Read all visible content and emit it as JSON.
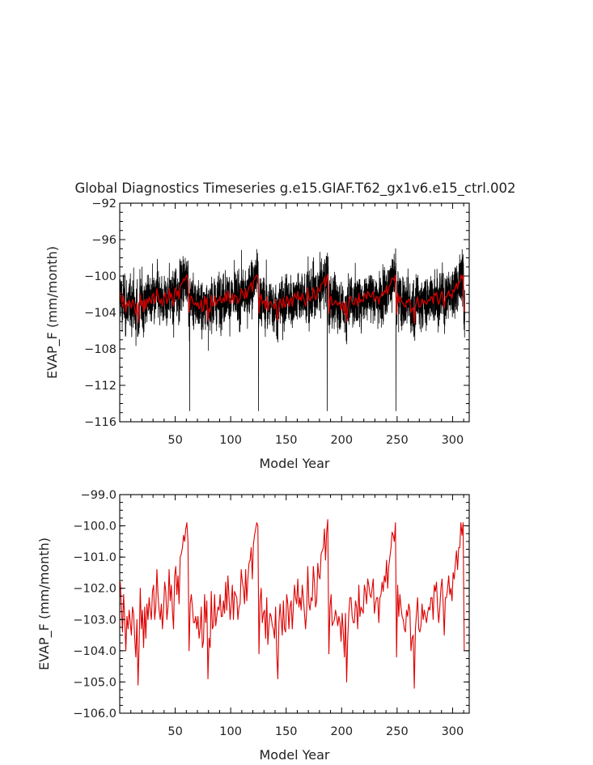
{
  "chart_data": [
    {
      "type": "line",
      "title": "Global Diagnostics Timeseries g.e15.GIAF.T62_gx1v6.e15_ctrl.002",
      "xlabel": "Model Year",
      "ylabel": "EVAP_F (mm/month)",
      "xlim": [
        0,
        315
      ],
      "ylim": [
        -116,
        -92
      ],
      "x_ticks": [
        50,
        100,
        150,
        200,
        250,
        300
      ],
      "x_tick_labels": [
        "50",
        "100",
        "150",
        "200",
        "250",
        "300"
      ],
      "y_ticks": [
        -116,
        -112,
        -108,
        -104,
        -100,
        -96,
        -92
      ],
      "y_tick_labels": [
        "−116",
        "−112",
        "−108",
        "−104",
        "−100",
        "−96",
        "−92"
      ],
      "grid": false,
      "series": [
        {
          "color": "#000000",
          "description_visible": "monthly values",
          "annual_base_mm_per_month": [
            -101.8,
            -102.6,
            -103.4,
            -102.2,
            -103.0,
            -104.0,
            -102.9,
            -103.3,
            -102.7,
            -103.1,
            -103.5,
            -102.6,
            -102.8,
            -103.6,
            -104.2,
            -103.0,
            -105.1,
            -103.8,
            -102.0,
            -103.3,
            -102.7,
            -103.9,
            -102.6,
            -103.6,
            -102.5,
            -103.0,
            -102.3,
            -102.7,
            -103.0,
            -102.1,
            -101.9,
            -103.0,
            -102.6,
            -101.4,
            -102.2,
            -102.7,
            -103.0,
            -102.5,
            -103.3,
            -102.7,
            -101.8,
            -102.1,
            -103.0,
            -102.6,
            -101.4,
            -102.4,
            -101.9,
            -102.7,
            -103.3,
            -101.6,
            -101.3,
            -102.2,
            -101.6,
            -102.5,
            -101.0,
            -100.9,
            -100.7,
            -100.3,
            -100.5,
            -100.1,
            -99.9,
            -100.5,
            -104.0,
            -102.5,
            -102.2,
            -102.6,
            -103.1,
            -103.1,
            -102.9,
            -103.3,
            -102.9,
            -103.6,
            -103.3,
            -102.6,
            -103.9,
            -103.7,
            -102.2,
            -103.1,
            -102.4,
            -104.9,
            -103.6,
            -103.9,
            -102.1,
            -103.3,
            -103.2,
            -102.2,
            -103.2,
            -102.9,
            -102.6,
            -102.7,
            -102.2,
            -102.9,
            -102.9,
            -102.4,
            -102.8,
            -101.8,
            -102.7,
            -101.6,
            -102.3,
            -103.0,
            -102.5,
            -101.9,
            -103.0,
            -102.1,
            -102.2,
            -102.3,
            -103.0,
            -102.6,
            -102.5,
            -101.4,
            -101.8,
            -102.0,
            -102.5,
            -101.4,
            -102.4,
            -101.7,
            -101.2,
            -101.1,
            -100.7,
            -101.7,
            -100.6,
            -100.3,
            -100.1,
            -99.9,
            -100.0,
            -104.1,
            -102.4,
            -102.0,
            -103.1,
            -102.8,
            -102.7,
            -103.6,
            -102.3,
            -103.8,
            -103.2,
            -102.8,
            -102.9,
            -103.2,
            -103.3,
            -103.6,
            -102.6,
            -104.1,
            -104.9,
            -103.1,
            -102.5,
            -103.0,
            -103.5,
            -102.4,
            -103.3,
            -103.4,
            -102.2,
            -102.5,
            -103.3,
            -102.6,
            -102.4,
            -103.3,
            -102.6,
            -101.9,
            -102.3,
            -102.5,
            -101.7,
            -102.6,
            -102.3,
            -102.7,
            -101.9,
            -102.3,
            -102.8,
            -103.3,
            -102.7,
            -101.3,
            -102.5,
            -102.7,
            -102.3,
            -102.4,
            -101.3,
            -101.8,
            -102.6,
            -102.4,
            -101.2,
            -101.6,
            -101.7,
            -100.9,
            -100.8,
            -100.7,
            -100.1,
            -101.1,
            -100.2,
            -99.8,
            -104.1,
            -102.6,
            -102.2,
            -103.2,
            -103.1,
            -103.0,
            -102.7,
            -102.9,
            -103.2,
            -102.9,
            -103.1,
            -103.7,
            -102.8,
            -103.4,
            -104.2,
            -102.8,
            -105.0,
            -103.6,
            -102.8,
            -102.3,
            -102.3,
            -102.9,
            -103.1,
            -103.1,
            -102.4,
            -102.6,
            -103.3,
            -101.9,
            -102.9,
            -102.6,
            -102.7,
            -102.8,
            -101.9,
            -102.1,
            -102.5,
            -101.7,
            -101.9,
            -102.2,
            -102.3,
            -102.0,
            -101.7,
            -102.8,
            -102.5,
            -102.3,
            -102.3,
            -103.1,
            -102.3,
            -102.2,
            -101.8,
            -102.1,
            -101.6,
            -101.8,
            -101.1,
            -102.0,
            -101.3,
            -101.0,
            -100.7,
            -100.2,
            -100.3,
            -100.5,
            -99.9,
            -104.2,
            -101.9,
            -102.9,
            -102.2,
            -102.6,
            -102.9,
            -103.0,
            -103.3,
            -103.4,
            -102.7,
            -102.9,
            -102.5,
            -102.7,
            -104.0,
            -103.6,
            -103.5,
            -105.2,
            -103.3,
            -102.8,
            -102.3,
            -103.3,
            -103.4,
            -103.2,
            -102.5,
            -103.0,
            -102.7,
            -102.9,
            -103.1,
            -102.8,
            -102.6,
            -102.7,
            -102.3,
            -102.3,
            -103.0,
            -101.9,
            -102.1,
            -101.8,
            -102.6,
            -103.1,
            -102.6,
            -102.0,
            -101.7,
            -102.5,
            -103.5,
            -102.3,
            -102.3,
            -102.0,
            -101.6,
            -102.2,
            -102.0,
            -102.4,
            -101.5,
            -101.7,
            -101.2,
            -100.8,
            -101.4,
            -100.7,
            -100.7,
            -99.9,
            -100.3,
            -99.9,
            -104.0
          ],
          "outliers": [
            [
              63,
              -114.8
            ],
            [
              125,
              -114.8
            ],
            [
              187,
              -114.8
            ],
            [
              249,
              -114.8
            ]
          ]
        },
        {
          "color": "#cc0000",
          "description_visible": "annual mean",
          "values_ref": "annual_means"
        }
      ]
    },
    {
      "type": "line",
      "title": "",
      "xlabel": "Model Year",
      "ylabel": "EVAP_F (mm/month)",
      "xlim": [
        0,
        315
      ],
      "ylim": [
        -106,
        -99
      ],
      "x_ticks": [
        50,
        100,
        150,
        200,
        250,
        300
      ],
      "x_tick_labels": [
        "50",
        "100",
        "150",
        "200",
        "250",
        "300"
      ],
      "y_ticks": [
        -106,
        -105,
        -104,
        -103,
        -102,
        -101,
        -100,
        -99
      ],
      "y_tick_labels": [
        "−106.0",
        "−105.0",
        "−104.0",
        "−103.0",
        "−102.0",
        "−101.0",
        "−100.0",
        "−99.0"
      ],
      "grid": false,
      "series": [
        {
          "color": "#dd0000",
          "description_visible": "annual mean",
          "values_ref": "annual_means"
        }
      ]
    }
  ],
  "annual_means": [
    -101.8,
    -102.6,
    -103.4,
    -102.2,
    -103.0,
    -104.0,
    -102.9,
    -103.3,
    -102.7,
    -103.1,
    -103.5,
    -102.6,
    -102.8,
    -103.6,
    -104.2,
    -103.0,
    -105.1,
    -103.8,
    -102.0,
    -103.3,
    -102.7,
    -103.9,
    -102.6,
    -103.6,
    -102.5,
    -103.0,
    -102.3,
    -102.7,
    -103.0,
    -102.1,
    -101.9,
    -103.0,
    -102.6,
    -101.4,
    -102.2,
    -102.7,
    -103.0,
    -102.5,
    -103.3,
    -102.7,
    -101.8,
    -102.1,
    -103.0,
    -102.6,
    -101.4,
    -102.4,
    -101.9,
    -102.7,
    -103.3,
    -101.6,
    -101.3,
    -102.2,
    -101.6,
    -102.5,
    -101.0,
    -100.9,
    -100.7,
    -100.3,
    -100.5,
    -100.1,
    -99.9,
    -100.5,
    -104.0,
    -102.5,
    -102.2,
    -102.6,
    -103.1,
    -103.1,
    -102.9,
    -103.3,
    -102.9,
    -103.6,
    -103.3,
    -102.6,
    -103.9,
    -103.7,
    -102.2,
    -103.1,
    -102.4,
    -104.9,
    -103.6,
    -103.9,
    -102.1,
    -103.3,
    -103.2,
    -102.2,
    -103.2,
    -102.9,
    -102.6,
    -102.7,
    -102.2,
    -102.9,
    -102.9,
    -102.4,
    -102.8,
    -101.8,
    -102.7,
    -101.6,
    -102.3,
    -103.0,
    -102.5,
    -101.9,
    -103.0,
    -102.1,
    -102.2,
    -102.3,
    -103.0,
    -102.6,
    -102.5,
    -101.4,
    -101.8,
    -102.0,
    -102.5,
    -101.4,
    -102.4,
    -101.7,
    -101.2,
    -101.1,
    -100.7,
    -101.7,
    -100.6,
    -100.3,
    -100.1,
    -99.9,
    -100.0,
    -104.1,
    -102.4,
    -102.0,
    -103.1,
    -102.8,
    -102.7,
    -103.6,
    -102.3,
    -103.8,
    -103.2,
    -102.8,
    -102.9,
    -103.2,
    -103.3,
    -103.6,
    -102.6,
    -104.1,
    -104.9,
    -103.1,
    -102.5,
    -103.0,
    -103.5,
    -102.4,
    -103.3,
    -103.4,
    -102.2,
    -102.5,
    -103.3,
    -102.6,
    -102.4,
    -103.3,
    -102.6,
    -101.9,
    -102.3,
    -102.5,
    -101.7,
    -102.6,
    -102.3,
    -102.7,
    -101.9,
    -102.3,
    -102.8,
    -103.3,
    -102.7,
    -101.3,
    -102.5,
    -102.7,
    -102.3,
    -102.4,
    -101.3,
    -101.8,
    -102.6,
    -102.4,
    -101.2,
    -101.6,
    -101.7,
    -100.9,
    -100.8,
    -100.7,
    -100.1,
    -101.1,
    -100.2,
    -99.8,
    -104.1,
    -102.6,
    -102.2,
    -103.2,
    -103.1,
    -103.0,
    -102.7,
    -102.9,
    -103.2,
    -102.9,
    -103.1,
    -103.7,
    -102.8,
    -103.4,
    -104.2,
    -102.8,
    -105.0,
    -103.6,
    -102.8,
    -102.3,
    -102.3,
    -102.9,
    -103.1,
    -103.1,
    -102.4,
    -102.6,
    -103.3,
    -101.9,
    -102.9,
    -102.6,
    -102.7,
    -102.8,
    -101.9,
    -102.1,
    -102.5,
    -101.7,
    -101.9,
    -102.2,
    -102.3,
    -102.0,
    -101.7,
    -102.8,
    -102.5,
    -102.3,
    -102.3,
    -103.1,
    -102.3,
    -102.2,
    -101.8,
    -102.1,
    -101.6,
    -101.8,
    -101.1,
    -102.0,
    -101.3,
    -101.0,
    -100.7,
    -100.2,
    -100.3,
    -100.5,
    -99.9,
    -104.2,
    -101.9,
    -102.9,
    -102.2,
    -102.6,
    -102.9,
    -103.0,
    -103.3,
    -103.4,
    -102.7,
    -102.9,
    -102.5,
    -102.7,
    -104.0,
    -103.6,
    -103.5,
    -105.2,
    -103.3,
    -102.8,
    -102.3,
    -103.3,
    -103.4,
    -103.2,
    -102.5,
    -103.0,
    -102.7,
    -102.9,
    -103.1,
    -102.8,
    -102.6,
    -102.7,
    -102.3,
    -102.3,
    -103.0,
    -101.9,
    -102.1,
    -101.8,
    -102.6,
    -103.1,
    -102.6,
    -102.0,
    -101.7,
    -102.5,
    -103.5,
    -102.3,
    -102.3,
    -102.0,
    -101.6,
    -102.2,
    -102.0,
    -102.4,
    -101.5,
    -101.7,
    -101.2,
    -100.8,
    -101.4,
    -100.7,
    -100.7,
    -99.9,
    -100.3,
    -99.9,
    -104.0
  ]
}
